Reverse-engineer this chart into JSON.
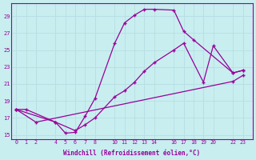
{
  "xlabel": "Windchill (Refroidissement éolien,°C)",
  "background_color": "#c8eef0",
  "line_color": "#990099",
  "grid_color": "#b8e0e4",
  "xlim": [
    -0.5,
    24.0
  ],
  "ylim": [
    14.5,
    30.5
  ],
  "xticks": [
    0,
    1,
    2,
    4,
    5,
    6,
    7,
    8,
    10,
    11,
    12,
    13,
    14,
    16,
    17,
    18,
    19,
    20,
    22,
    23
  ],
  "yticks": [
    15,
    17,
    19,
    21,
    23,
    25,
    27,
    29
  ],
  "line1_x": [
    0,
    1,
    4,
    5,
    6,
    7,
    8,
    10,
    11,
    12,
    13,
    14,
    16,
    17,
    18,
    22,
    23
  ],
  "line1_y": [
    18.0,
    18.0,
    16.5,
    15.2,
    15.3,
    17.2,
    19.3,
    25.8,
    28.2,
    29.1,
    29.8,
    29.8,
    29.7,
    27.2,
    26.2,
    22.3,
    22.6
  ],
  "line2_x": [
    0,
    4,
    6,
    7,
    8,
    10,
    11,
    12,
    13,
    14,
    16,
    17,
    19,
    20,
    22,
    23
  ],
  "line2_y": [
    18.0,
    16.5,
    15.5,
    16.2,
    17.0,
    19.5,
    20.2,
    21.2,
    22.5,
    23.5,
    25.0,
    25.8,
    21.2,
    25.5,
    22.3,
    22.6
  ],
  "line3_x": [
    0,
    2,
    22,
    23
  ],
  "line3_y": [
    18.0,
    16.5,
    21.3,
    22.0
  ]
}
